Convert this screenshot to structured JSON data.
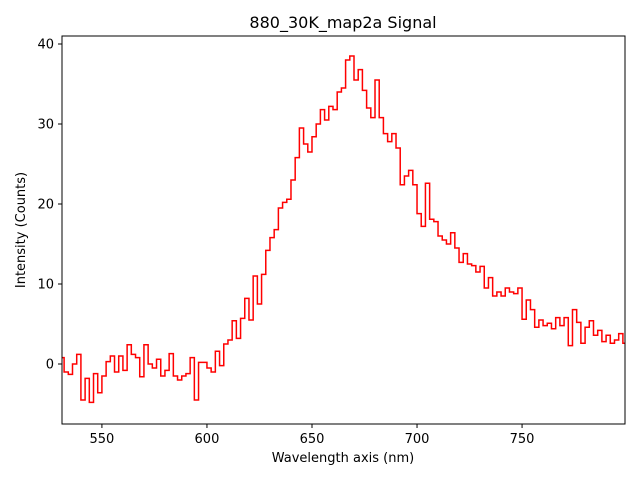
{
  "chart_data": {
    "type": "line",
    "drawstyle": "steps-mid",
    "title": "880_30K_map2a Signal",
    "xlabel": "Wavelength axis (nm)",
    "ylabel": "Intensity (Counts)",
    "xlim": [
      531,
      799
    ],
    "ylim": [
      -7.5,
      41
    ],
    "xticks": [
      550,
      600,
      650,
      700,
      750
    ],
    "yticks": [
      0,
      10,
      20,
      30,
      40
    ],
    "grid": false,
    "series": [
      {
        "color": "#ff0000",
        "x": [
          531,
          533,
          535,
          537,
          539,
          541,
          543,
          545,
          547,
          549,
          551,
          553,
          555,
          557,
          559,
          561,
          563,
          565,
          567,
          569,
          571,
          573,
          575,
          577,
          579,
          581,
          583,
          585,
          587,
          589,
          591,
          593,
          595,
          597,
          599,
          601,
          603,
          605,
          607,
          609,
          611,
          613,
          615,
          617,
          619,
          621,
          623,
          625,
          627,
          629,
          631,
          633,
          635,
          637,
          639,
          641,
          643,
          645,
          647,
          649,
          651,
          653,
          655,
          657,
          659,
          661,
          663,
          665,
          667,
          669,
          671,
          673,
          675,
          677,
          679,
          681,
          683,
          685,
          687,
          689,
          691,
          693,
          695,
          697,
          699,
          701,
          703,
          705,
          707,
          709,
          711,
          713,
          715,
          717,
          719,
          721,
          723,
          725,
          727,
          729,
          731,
          733,
          735,
          737,
          739,
          741,
          743,
          745,
          747,
          749,
          751,
          753,
          755,
          757,
          759,
          761,
          763,
          765,
          767,
          769,
          771,
          773,
          775,
          777,
          779,
          781,
          783,
          785,
          787,
          789,
          791,
          793,
          795,
          797,
          799
        ],
        "y": [
          0.8,
          -1.0,
          -1.3,
          0.0,
          1.2,
          -4.5,
          -1.8,
          -4.8,
          -1.2,
          -3.6,
          -1.5,
          0.3,
          1.0,
          -1.0,
          1.0,
          -0.8,
          2.4,
          1.2,
          0.8,
          -1.6,
          2.4,
          0.0,
          -0.5,
          0.6,
          -1.5,
          -0.8,
          1.3,
          -1.5,
          -2.0,
          -1.5,
          -1.2,
          0.8,
          -4.5,
          0.2,
          0.2,
          -0.5,
          -1.0,
          1.6,
          -0.2,
          2.5,
          3.0,
          5.4,
          3.2,
          5.7,
          8.2,
          5.5,
          11.0,
          7.5,
          11.2,
          14.2,
          15.8,
          16.8,
          19.5,
          20.2,
          20.6,
          23.0,
          25.8,
          29.5,
          27.5,
          26.5,
          28.4,
          30.0,
          31.8,
          30.5,
          32.2,
          31.8,
          34.0,
          34.5,
          38.0,
          38.5,
          35.5,
          36.8,
          34.2,
          32.0,
          30.8,
          35.5,
          30.8,
          28.8,
          27.8,
          28.8,
          27.0,
          22.4,
          23.5,
          24.2,
          22.4,
          18.8,
          17.2,
          22.6,
          18.1,
          17.8,
          16.0,
          15.5,
          15.0,
          16.4,
          14.5,
          12.7,
          13.8,
          12.5,
          12.3,
          11.5,
          12.2,
          9.5,
          10.8,
          8.5,
          9.0,
          8.5,
          9.5,
          9.0,
          8.8,
          9.5,
          5.6,
          8.0,
          6.8,
          4.6,
          5.5,
          4.8,
          5.1,
          4.4,
          5.8,
          4.8,
          5.8,
          2.3,
          6.8,
          5.2,
          2.6,
          4.6,
          5.4,
          3.6,
          4.2,
          2.8,
          3.6,
          2.6,
          3.0,
          3.8,
          2.6
        ]
      }
    ]
  }
}
